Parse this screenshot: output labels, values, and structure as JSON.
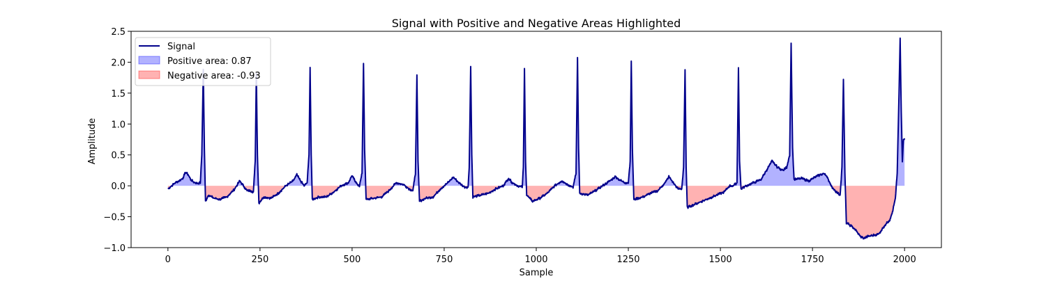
{
  "chart_data": {
    "type": "area",
    "title": "Signal with Positive and Negative Areas Highlighted",
    "xlabel": "Sample",
    "ylabel": "Amplitude",
    "xlim": [
      -100,
      2100
    ],
    "ylim": [
      -1.0,
      2.5
    ],
    "xticks": [
      0,
      250,
      500,
      750,
      1000,
      1250,
      1500,
      1750,
      2000
    ],
    "yticks": [
      -1.0,
      -0.5,
      0.0,
      0.5,
      1.0,
      1.5,
      2.0,
      2.5
    ],
    "xtick_labels": [
      "0",
      "250",
      "500",
      "750",
      "1000",
      "1250",
      "1500",
      "1750",
      "2000"
    ],
    "ytick_labels": [
      "−1.0",
      "−0.5",
      "0.0",
      "0.5",
      "1.0",
      "1.5",
      "2.0",
      "2.5"
    ],
    "grid": false,
    "legend_position": "upper-left",
    "series": [
      {
        "name": "Signal",
        "kind": "line",
        "color": "#00008b"
      },
      {
        "name": "Positive area: 0.87",
        "kind": "fill",
        "color": "#0000ff",
        "opacity": 0.3
      },
      {
        "name": "Negative area: -0.93",
        "kind": "fill",
        "color": "#ff0000",
        "opacity": 0.3
      }
    ],
    "signal_points": [
      [
        0,
        -0.05
      ],
      [
        10,
        0.0
      ],
      [
        20,
        0.05
      ],
      [
        30,
        0.08
      ],
      [
        40,
        0.12
      ],
      [
        48,
        0.22
      ],
      [
        55,
        0.18
      ],
      [
        62,
        0.1
      ],
      [
        70,
        0.06
      ],
      [
        80,
        0.04
      ],
      [
        88,
        0.05
      ],
      [
        92,
        0.5
      ],
      [
        96,
        1.88
      ],
      [
        99,
        0.6
      ],
      [
        102,
        -0.25
      ],
      [
        110,
        -0.15
      ],
      [
        125,
        -0.2
      ],
      [
        140,
        -0.22
      ],
      [
        160,
        -0.18
      ],
      [
        180,
        -0.06
      ],
      [
        195,
        0.08
      ],
      [
        205,
        0.0
      ],
      [
        215,
        -0.08
      ],
      [
        225,
        -0.08
      ],
      [
        232,
        -0.1
      ],
      [
        237,
        0.4
      ],
      [
        240,
        1.82
      ],
      [
        243,
        0.5
      ],
      [
        247,
        -0.28
      ],
      [
        260,
        -0.18
      ],
      [
        280,
        -0.2
      ],
      [
        300,
        -0.12
      ],
      [
        320,
        0.0
      ],
      [
        340,
        0.08
      ],
      [
        350,
        0.18
      ],
      [
        360,
        0.08
      ],
      [
        370,
        0.0
      ],
      [
        378,
        0.05
      ],
      [
        383,
        0.5
      ],
      [
        386,
        1.92
      ],
      [
        389,
        0.5
      ],
      [
        392,
        -0.22
      ],
      [
        410,
        -0.18
      ],
      [
        430,
        -0.18
      ],
      [
        450,
        -0.1
      ],
      [
        470,
        0.0
      ],
      [
        490,
        0.05
      ],
      [
        500,
        0.17
      ],
      [
        510,
        0.05
      ],
      [
        520,
        0.0
      ],
      [
        527,
        0.2
      ],
      [
        531,
        1.98
      ],
      [
        534,
        0.6
      ],
      [
        538,
        -0.22
      ],
      [
        560,
        -0.2
      ],
      [
        580,
        -0.18
      ],
      [
        600,
        -0.08
      ],
      [
        620,
        0.05
      ],
      [
        640,
        0.02
      ],
      [
        655,
        -0.05
      ],
      [
        665,
        -0.08
      ],
      [
        672,
        0.2
      ],
      [
        676,
        1.78
      ],
      [
        679,
        0.4
      ],
      [
        683,
        -0.25
      ],
      [
        700,
        -0.2
      ],
      [
        720,
        -0.18
      ],
      [
        740,
        -0.05
      ],
      [
        760,
        0.05
      ],
      [
        775,
        0.14
      ],
      [
        790,
        0.05
      ],
      [
        805,
        -0.02
      ],
      [
        815,
        -0.02
      ],
      [
        818,
        0.3
      ],
      [
        822,
        1.93
      ],
      [
        825,
        0.5
      ],
      [
        828,
        -0.18
      ],
      [
        850,
        -0.15
      ],
      [
        870,
        -0.12
      ],
      [
        890,
        -0.05
      ],
      [
        910,
        0.0
      ],
      [
        925,
        0.12
      ],
      [
        935,
        0.05
      ],
      [
        950,
        0.0
      ],
      [
        962,
        -0.02
      ],
      [
        965,
        0.3
      ],
      [
        968,
        1.89
      ],
      [
        971,
        0.4
      ],
      [
        974,
        -0.15
      ],
      [
        990,
        -0.25
      ],
      [
        1010,
        -0.2
      ],
      [
        1030,
        -0.12
      ],
      [
        1050,
        0.0
      ],
      [
        1070,
        0.08
      ],
      [
        1085,
        0.02
      ],
      [
        1100,
        -0.02
      ],
      [
        1108,
        0.2
      ],
      [
        1112,
        2.07
      ],
      [
        1115,
        0.6
      ],
      [
        1118,
        -0.12
      ],
      [
        1140,
        -0.15
      ],
      [
        1160,
        -0.08
      ],
      [
        1180,
        0.0
      ],
      [
        1200,
        0.08
      ],
      [
        1215,
        0.15
      ],
      [
        1225,
        0.1
      ],
      [
        1240,
        0.05
      ],
      [
        1250,
        0.05
      ],
      [
        1255,
        0.4
      ],
      [
        1258,
        2.0
      ],
      [
        1261,
        0.6
      ],
      [
        1265,
        -0.22
      ],
      [
        1290,
        -0.18
      ],
      [
        1310,
        -0.12
      ],
      [
        1330,
        -0.08
      ],
      [
        1350,
        0.05
      ],
      [
        1360,
        0.15
      ],
      [
        1372,
        0.05
      ],
      [
        1385,
        -0.05
      ],
      [
        1395,
        -0.05
      ],
      [
        1400,
        0.3
      ],
      [
        1404,
        1.88
      ],
      [
        1407,
        0.3
      ],
      [
        1410,
        -0.35
      ],
      [
        1430,
        -0.3
      ],
      [
        1450,
        -0.25
      ],
      [
        1470,
        -0.2
      ],
      [
        1490,
        -0.15
      ],
      [
        1510,
        -0.1
      ],
      [
        1525,
        0.0
      ],
      [
        1535,
        0.0
      ],
      [
        1545,
        0.05
      ],
      [
        1549,
        1.91
      ],
      [
        1552,
        0.4
      ],
      [
        1556,
        -0.05
      ],
      [
        1570,
        0.0
      ],
      [
        1590,
        0.05
      ],
      [
        1610,
        0.1
      ],
      [
        1625,
        0.25
      ],
      [
        1640,
        0.4
      ],
      [
        1655,
        0.3
      ],
      [
        1670,
        0.25
      ],
      [
        1680,
        0.3
      ],
      [
        1688,
        0.5
      ],
      [
        1692,
        2.3
      ],
      [
        1696,
        0.6
      ],
      [
        1700,
        0.1
      ],
      [
        1720,
        0.12
      ],
      [
        1740,
        0.08
      ],
      [
        1760,
        0.15
      ],
      [
        1780,
        0.2
      ],
      [
        1790,
        0.15
      ],
      [
        1800,
        0.0
      ],
      [
        1815,
        -0.1
      ],
      [
        1825,
        -0.15
      ],
      [
        1830,
        0.3
      ],
      [
        1834,
        1.71
      ],
      [
        1838,
        0.2
      ],
      [
        1842,
        -0.6
      ],
      [
        1855,
        -0.65
      ],
      [
        1865,
        -0.7
      ],
      [
        1880,
        -0.82
      ],
      [
        1890,
        -0.85
      ],
      [
        1900,
        -0.82
      ],
      [
        1915,
        -0.8
      ],
      [
        1930,
        -0.78
      ],
      [
        1945,
        -0.65
      ],
      [
        1960,
        -0.55
      ],
      [
        1968,
        -0.4
      ],
      [
        1975,
        -0.2
      ],
      [
        1980,
        0.2
      ],
      [
        1985,
        1.5
      ],
      [
        1988,
        2.37
      ],
      [
        1991,
        1.2
      ],
      [
        1994,
        0.4
      ],
      [
        1997,
        0.75
      ],
      [
        2000,
        0.75
      ]
    ]
  }
}
